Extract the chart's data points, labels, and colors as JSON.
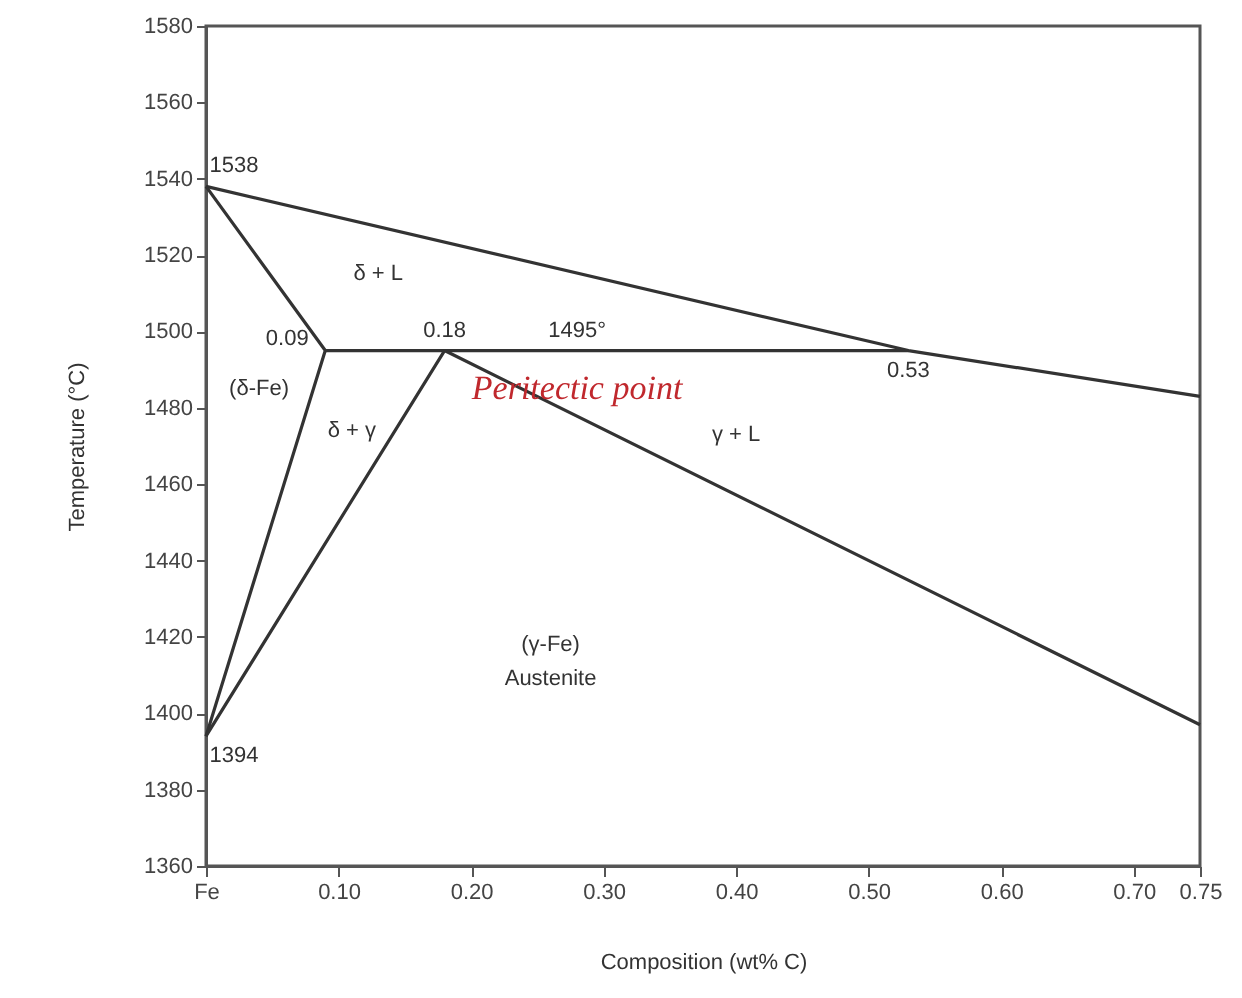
{
  "chart_data": {
    "type": "line",
    "xlabel": "Composition (wt% C)",
    "ylabel": "Temperature (°C)",
    "xlim": [
      0,
      0.75
    ],
    "ylim": [
      1360,
      1580
    ],
    "xticks": [
      {
        "value": 0,
        "label": "Fe"
      },
      {
        "value": 0.1,
        "label": "0.10"
      },
      {
        "value": 0.2,
        "label": "0.20"
      },
      {
        "value": 0.3,
        "label": "0.30"
      },
      {
        "value": 0.4,
        "label": "0.40"
      },
      {
        "value": 0.5,
        "label": "0.50"
      },
      {
        "value": 0.6,
        "label": "0.60"
      },
      {
        "value": 0.7,
        "label": "0.70"
      },
      {
        "value": 0.75,
        "label": "0.75"
      }
    ],
    "yticks": [
      1360,
      1380,
      1400,
      1420,
      1440,
      1460,
      1480,
      1500,
      1520,
      1540,
      1560,
      1580
    ],
    "grid": false,
    "series": [
      {
        "color": "#333333",
        "x": [
          0,
          0.53,
          0.75
        ],
        "values": [
          1538,
          1495,
          1483
        ]
      },
      {
        "color": "#333333",
        "x": [
          0,
          0.09,
          0
        ],
        "values": [
          1538,
          1495,
          1394
        ]
      },
      {
        "color": "#333333",
        "x": [
          0.09,
          0.53
        ],
        "values": [
          1495,
          1495
        ]
      },
      {
        "color": "#333333",
        "x": [
          0,
          0.18,
          0.75
        ],
        "values": [
          1394,
          1495,
          1397
        ]
      }
    ],
    "annotations": [
      {
        "text": "1538",
        "x": 0,
        "y": 1538
      },
      {
        "text": "0.09",
        "x": 0.09,
        "y": 1495
      },
      {
        "text": "0.18",
        "x": 0.18,
        "y": 1495
      },
      {
        "text": "1495°",
        "x": 0.28,
        "y": 1495
      },
      {
        "text": "0.53",
        "x": 0.53,
        "y": 1495
      },
      {
        "text": "1394",
        "x": 0,
        "y": 1394
      },
      "δ + L",
      "(δ-Fe)",
      "δ + γ",
      "Peritectic point",
      "γ + L",
      "(γ-Fe)",
      "Austenite"
    ]
  }
}
